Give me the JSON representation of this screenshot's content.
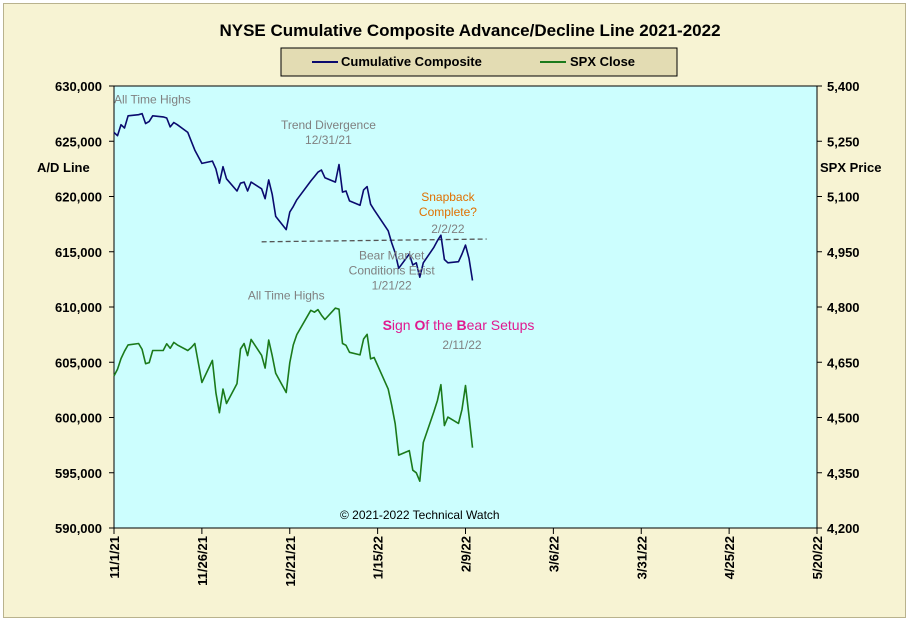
{
  "chart_data": {
    "type": "line",
    "title": "NYSE Cumulative  Composite  Advance/Decline  Line  2021-2022",
    "ylabel": "A/D Line",
    "y2label": "SPX Price",
    "ylim": [
      590000,
      630000
    ],
    "y2lim": [
      4200,
      5400
    ],
    "yticks": [
      "630,000",
      "625,000",
      "620,000",
      "615,000",
      "610,000",
      "605,000",
      "600,000",
      "595,000",
      "590,000"
    ],
    "y2ticks": [
      "5,400",
      "5,250",
      "5,100",
      "4,950",
      "4,800",
      "4,650",
      "4,500",
      "4,350",
      "4,200"
    ],
    "xticks": [
      "11/1/21",
      "11/26/21",
      "12/21/21",
      "1/15/22",
      "2/9/22",
      "3/6/22",
      "3/31/22",
      "4/25/22",
      "5/20/22"
    ],
    "xrange": [
      "2021-11-01",
      "2022-05-20"
    ],
    "legend_position": "top-center",
    "legend": [
      {
        "name": "Cumulative Composite",
        "color": "#0a0a6e"
      },
      {
        "name": "SPX Close",
        "color": "#1b7a1b"
      }
    ],
    "series": [
      {
        "name": "Cumulative Composite",
        "axis": "left",
        "color": "#0a0a6e",
        "points": [
          [
            "2021-11-01",
            625800
          ],
          [
            "2021-11-02",
            625500
          ],
          [
            "2021-11-03",
            626500
          ],
          [
            "2021-11-04",
            626200
          ],
          [
            "2021-11-05",
            627300
          ],
          [
            "2021-11-08",
            627400
          ],
          [
            "2021-11-09",
            627500
          ],
          [
            "2021-11-10",
            626600
          ],
          [
            "2021-11-11",
            626800
          ],
          [
            "2021-11-12",
            627300
          ],
          [
            "2021-11-15",
            627200
          ],
          [
            "2021-11-16",
            627100
          ],
          [
            "2021-11-17",
            626300
          ],
          [
            "2021-11-18",
            626700
          ],
          [
            "2021-11-19",
            626500
          ],
          [
            "2021-11-22",
            625800
          ],
          [
            "2021-11-23",
            625000
          ],
          [
            "2021-11-24",
            624200
          ],
          [
            "2021-11-26",
            623000
          ],
          [
            "2021-11-29",
            623200
          ],
          [
            "2021-11-30",
            622500
          ],
          [
            "2021-12-01",
            621200
          ],
          [
            "2021-12-02",
            622700
          ],
          [
            "2021-12-03",
            621600
          ],
          [
            "2021-12-06",
            620500
          ],
          [
            "2021-12-07",
            621200
          ],
          [
            "2021-12-08",
            621300
          ],
          [
            "2021-12-09",
            620500
          ],
          [
            "2021-12-10",
            621300
          ],
          [
            "2021-12-13",
            620700
          ],
          [
            "2021-12-14",
            619800
          ],
          [
            "2021-12-15",
            621500
          ],
          [
            "2021-12-16",
            620200
          ],
          [
            "2021-12-17",
            618200
          ],
          [
            "2021-12-20",
            617000
          ],
          [
            "2021-12-21",
            618600
          ],
          [
            "2021-12-22",
            619100
          ],
          [
            "2021-12-23",
            619700
          ],
          [
            "2021-12-27",
            621400
          ],
          [
            "2021-12-28",
            621800
          ],
          [
            "2021-12-29",
            622200
          ],
          [
            "2021-12-30",
            622400
          ],
          [
            "2021-12-31",
            621700
          ],
          [
            "2022-01-03",
            621300
          ],
          [
            "2022-01-04",
            622900
          ],
          [
            "2022-01-05",
            620400
          ],
          [
            "2022-01-06",
            620500
          ],
          [
            "2022-01-07",
            619600
          ],
          [
            "2022-01-10",
            619200
          ],
          [
            "2022-01-11",
            620600
          ],
          [
            "2022-01-12",
            620900
          ],
          [
            "2022-01-13",
            619300
          ],
          [
            "2022-01-14",
            618800
          ],
          [
            "2022-01-18",
            616900
          ],
          [
            "2022-01-19",
            615800
          ],
          [
            "2022-01-20",
            614900
          ],
          [
            "2022-01-21",
            613500
          ],
          [
            "2022-01-24",
            614800
          ],
          [
            "2022-01-25",
            613800
          ],
          [
            "2022-01-26",
            614000
          ],
          [
            "2022-01-27",
            612700
          ],
          [
            "2022-01-28",
            614000
          ],
          [
            "2022-01-31",
            615400
          ],
          [
            "2022-02-01",
            616000
          ],
          [
            "2022-02-02",
            616500
          ],
          [
            "2022-02-03",
            614300
          ],
          [
            "2022-02-04",
            614000
          ],
          [
            "2022-02-07",
            614100
          ],
          [
            "2022-02-08",
            614800
          ],
          [
            "2022-02-09",
            615600
          ],
          [
            "2022-02-10",
            614400
          ],
          [
            "2022-02-11",
            612400
          ]
        ]
      },
      {
        "name": "SPX Close",
        "axis": "right",
        "color": "#1b7a1b",
        "points": [
          [
            "2021-11-01",
            4613
          ],
          [
            "2021-11-02",
            4631
          ],
          [
            "2021-11-03",
            4660
          ],
          [
            "2021-11-04",
            4680
          ],
          [
            "2021-11-05",
            4697
          ],
          [
            "2021-11-08",
            4701
          ],
          [
            "2021-11-09",
            4685
          ],
          [
            "2021-11-10",
            4646
          ],
          [
            "2021-11-11",
            4649
          ],
          [
            "2021-11-12",
            4682
          ],
          [
            "2021-11-15",
            4682
          ],
          [
            "2021-11-16",
            4700
          ],
          [
            "2021-11-17",
            4688
          ],
          [
            "2021-11-18",
            4704
          ],
          [
            "2021-11-19",
            4697
          ],
          [
            "2021-11-22",
            4682
          ],
          [
            "2021-11-23",
            4690
          ],
          [
            "2021-11-24",
            4701
          ],
          [
            "2021-11-26",
            4595
          ],
          [
            "2021-11-29",
            4655
          ],
          [
            "2021-11-30",
            4567
          ],
          [
            "2021-12-01",
            4513
          ],
          [
            "2021-12-02",
            4577
          ],
          [
            "2021-12-03",
            4538
          ],
          [
            "2021-12-06",
            4592
          ],
          [
            "2021-12-07",
            4686
          ],
          [
            "2021-12-08",
            4701
          ],
          [
            "2021-12-09",
            4668
          ],
          [
            "2021-12-10",
            4712
          ],
          [
            "2021-12-13",
            4669
          ],
          [
            "2021-12-14",
            4634
          ],
          [
            "2021-12-15",
            4710
          ],
          [
            "2021-12-16",
            4668
          ],
          [
            "2021-12-17",
            4620
          ],
          [
            "2021-12-20",
            4568
          ],
          [
            "2021-12-21",
            4649
          ],
          [
            "2021-12-22",
            4697
          ],
          [
            "2021-12-23",
            4725
          ],
          [
            "2021-12-27",
            4791
          ],
          [
            "2021-12-28",
            4786
          ],
          [
            "2021-12-29",
            4793
          ],
          [
            "2021-12-30",
            4778
          ],
          [
            "2021-12-31",
            4766
          ],
          [
            "2022-01-03",
            4797
          ],
          [
            "2022-01-04",
            4794
          ],
          [
            "2022-01-05",
            4701
          ],
          [
            "2022-01-06",
            4696
          ],
          [
            "2022-01-07",
            4677
          ],
          [
            "2022-01-10",
            4670
          ],
          [
            "2022-01-11",
            4713
          ],
          [
            "2022-01-12",
            4726
          ],
          [
            "2022-01-13",
            4659
          ],
          [
            "2022-01-14",
            4663
          ],
          [
            "2022-01-18",
            4577
          ],
          [
            "2022-01-19",
            4533
          ],
          [
            "2022-01-20",
            4483
          ],
          [
            "2022-01-21",
            4398
          ],
          [
            "2022-01-24",
            4410
          ],
          [
            "2022-01-25",
            4357
          ],
          [
            "2022-01-26",
            4350
          ],
          [
            "2022-01-27",
            4327
          ],
          [
            "2022-01-28",
            4432
          ],
          [
            "2022-01-31",
            4516
          ],
          [
            "2022-02-01",
            4546
          ],
          [
            "2022-02-02",
            4589
          ],
          [
            "2022-02-03",
            4478
          ],
          [
            "2022-02-04",
            4501
          ],
          [
            "2022-02-07",
            4484
          ],
          [
            "2022-02-08",
            4522
          ],
          [
            "2022-02-09",
            4587
          ],
          [
            "2022-02-10",
            4504
          ],
          [
            "2022-02-11",
            4418
          ]
        ]
      }
    ],
    "trendline": {
      "from": [
        "2021-12-13",
        615900
      ],
      "to": [
        "2022-02-15",
        616150
      ]
    },
    "annotations": [
      {
        "id": "ath-top",
        "lines": [
          "All Time Highs"
        ],
        "at": [
          "2021-11-01",
          628400
        ],
        "color": "#808080",
        "anchor": "start"
      },
      {
        "id": "trend-div",
        "lines": [
          "Trend  Divergence",
          "12/31/21"
        ],
        "at": [
          "2022-01-01",
          626100
        ],
        "color": "#808080",
        "anchor": "middle"
      },
      {
        "id": "snapback",
        "lines": [
          "Snapback",
          "Complete?"
        ],
        "at": [
          "2022-02-04",
          619600
        ],
        "color": "#e07000",
        "anchor": "middle"
      },
      {
        "id": "snap-date",
        "lines": [
          "2/2/22"
        ],
        "at": [
          "2022-02-04",
          616700
        ],
        "color": "#808080",
        "anchor": "middle"
      },
      {
        "id": "bear-market",
        "lines": [
          "Bear Market",
          "Conditions  Exist",
          "1/21/22"
        ],
        "at": [
          "2022-01-19",
          614300
        ],
        "color": "#808080",
        "anchor": "middle"
      },
      {
        "id": "ath-bottom",
        "lines": [
          "All Time Highs"
        ],
        "at": [
          "2021-12-20",
          610700
        ],
        "color": "#808080",
        "anchor": "middle"
      },
      {
        "id": "bear-date",
        "lines": [
          "2/11/22"
        ],
        "at": [
          "2022-02-08",
          606200
        ],
        "color": "#808080",
        "anchor": "middle"
      },
      {
        "id": "copyright",
        "lines": [
          "© 2021-2022  Technical Watch"
        ],
        "at": [
          "2022-01-27",
          590800
        ],
        "color": "#000000",
        "anchor": "middle"
      }
    ],
    "bear_setups": {
      "parts": [
        {
          "text": "S",
          "color": "#e0198f",
          "bold": true
        },
        {
          "text": "ign ",
          "color": "#e0198f",
          "bold": false
        },
        {
          "text": "O",
          "color": "#e0198f",
          "bold": true
        },
        {
          "text": "f the ",
          "color": "#e0198f",
          "bold": false
        },
        {
          "text": "B",
          "color": "#e0198f",
          "bold": true
        },
        {
          "text": "ear Setups",
          "color": "#e0198f",
          "bold": false
        }
      ],
      "at": [
        "2022-02-07",
        607900
      ]
    },
    "plot_background": "#ccfefe",
    "frame_background": "#f7f3d3"
  }
}
